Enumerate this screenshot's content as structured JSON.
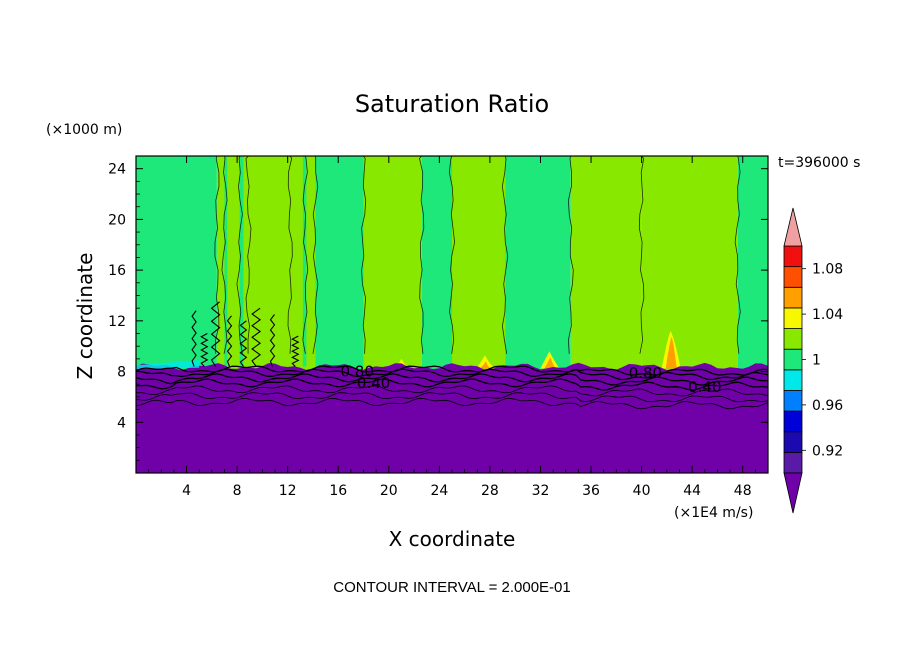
{
  "chart_data": {
    "type": "heatmap",
    "title": "Saturation Ratio",
    "xlabel": "X coordinate",
    "ylabel": "Z coordinate",
    "x_unit": "(×1E4 m/s)",
    "y_unit": "(×1000 m)",
    "time_label": "t=396000 s",
    "footer": "CONTOUR INTERVAL = 2.000E-01",
    "xlim": [
      0,
      50
    ],
    "ylim": [
      0,
      25
    ],
    "x_ticks": [
      4,
      8,
      12,
      16,
      20,
      24,
      28,
      32,
      36,
      40,
      44,
      48
    ],
    "y_ticks": [
      4,
      8,
      12,
      16,
      20,
      24
    ],
    "boundary_level": 8.4,
    "colors": {
      "purple": "#7000a8",
      "green": "#1ee87a",
      "lime": "#88e800",
      "yellow": "#f7f700",
      "orange": "#ffa000",
      "lightred": "#f0a0a0"
    },
    "lower_region_value": "< 0.90",
    "upper_region_values": [
      "0.98-1.00",
      "1.00-1.02"
    ],
    "band_edges_x": [
      0,
      6.4,
      14.2,
      18.0,
      22.6,
      25.0,
      29.2,
      34.4,
      40.0,
      47.6,
      50
    ],
    "band_classes": [
      "0.98-1.00",
      "1.00-1.02",
      "0.98-1.00",
      "1.00-1.02",
      "0.98-1.00",
      "1.00-1.02",
      "0.98-1.00",
      "1.00-1.02",
      "1.00-1.02",
      "0.98-1.00"
    ],
    "contour_labels": [
      {
        "text": "0.80",
        "x": 17.5,
        "z": 8.0
      },
      {
        "text": "0.40",
        "x": 18.8,
        "z": 7.1
      },
      {
        "text": "0.80",
        "x": 40.3,
        "z": 7.9
      },
      {
        "text": "0.40",
        "x": 45.0,
        "z": 6.8
      }
    ],
    "supersaturation_spots": [
      {
        "x": 42.3,
        "z_top": 11.2,
        "level": "1.02-1.04"
      },
      {
        "x": 32.7,
        "z_top": 9.6,
        "level": "1.04-1.06"
      },
      {
        "x": 27.6,
        "z_top": 9.3,
        "level": "1.04-1.06"
      },
      {
        "x": 21.0,
        "z_top": 9.0,
        "level": "1.04-1.06"
      }
    ],
    "colorbar": {
      "labels": [
        "1.08",
        "1.04",
        "1",
        "0.96",
        "0.92"
      ],
      "levels": [
        0.9,
        0.92,
        0.94,
        0.96,
        0.98,
        1.0,
        1.02,
        1.04,
        1.06,
        1.08,
        1.1
      ],
      "colors": [
        "#5a1aa8",
        "#1a0ab0",
        "#0000d8",
        "#0080ff",
        "#00e8e8",
        "#1ee87a",
        "#88e800",
        "#f7f700",
        "#ffa000",
        "#ff5000",
        "#f01010"
      ],
      "under_color": "#7000a8",
      "over_color": "#f0a0a0"
    }
  }
}
